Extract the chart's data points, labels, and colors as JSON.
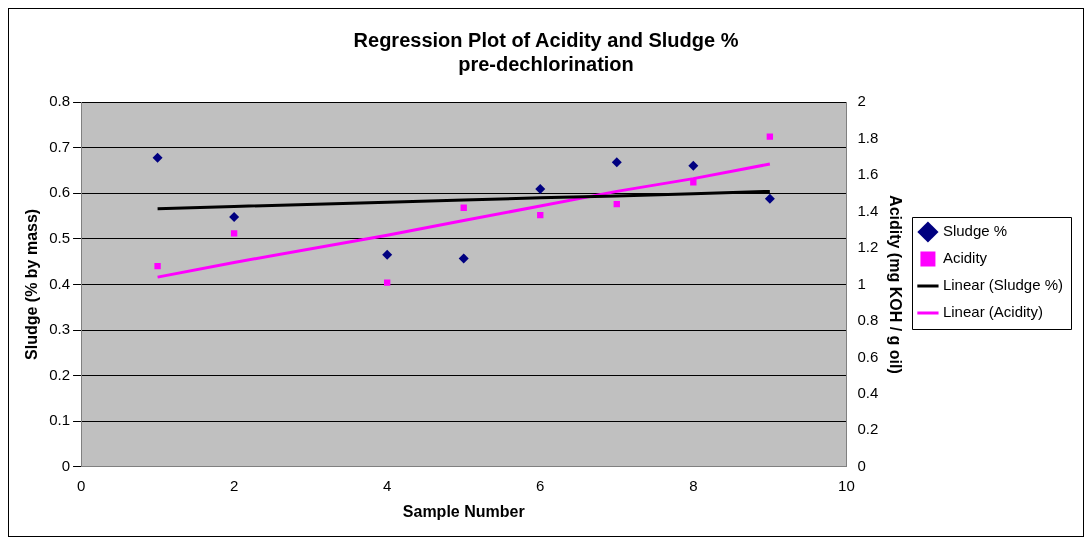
{
  "chart_data": {
    "type": "scatter",
    "title": "Regression Plot of Acidity and Sludge %\npre-dechlorination",
    "xlabel": "Sample Number",
    "ylabel": "Sludge (% by mass)",
    "y2label": "Acidity (mg KOH / g oil)",
    "x": [
      1,
      2,
      4,
      5,
      6,
      7,
      8,
      9
    ],
    "series": [
      {
        "name": "Sludge %",
        "type": "scatter",
        "marker": "diamond",
        "color": "#000080",
        "values": [
          0.678,
          0.548,
          0.465,
          0.457,
          0.609,
          0.668,
          0.66,
          0.588
        ]
      },
      {
        "name": "Acidity",
        "type": "scatter",
        "marker": "square",
        "color": "#ff00ff",
        "axis": "y2",
        "values": [
          1.1,
          1.28,
          1.01,
          1.42,
          1.38,
          1.44,
          1.56,
          1.81
        ]
      },
      {
        "name": "Linear (Sludge %)",
        "type": "line",
        "marker": "none",
        "color": "#000000",
        "values": [
          0.566,
          0.571,
          0.58,
          0.585,
          0.59,
          0.594,
          0.599,
          0.604
        ]
      },
      {
        "name": "Linear (Acidity)",
        "type": "line",
        "marker": "none",
        "color": "#ff00ff",
        "axis": "y2",
        "values": [
          1.04,
          1.12,
          1.27,
          1.35,
          1.43,
          1.51,
          1.58,
          1.66
        ]
      }
    ],
    "xlim": [
      0,
      10
    ],
    "xticks": [
      0,
      2,
      4,
      6,
      8,
      10
    ],
    "ylim": [
      0,
      0.8
    ],
    "yticks": [
      0,
      0.1,
      0.2,
      0.3,
      0.4,
      0.5,
      0.6,
      0.7,
      0.8
    ],
    "y2lim": [
      0,
      2
    ],
    "y2ticks": [
      0,
      0.2,
      0.4,
      0.6,
      0.8,
      1,
      1.2,
      1.4,
      1.6,
      1.8,
      2
    ],
    "grid": "y",
    "legend": "right"
  }
}
